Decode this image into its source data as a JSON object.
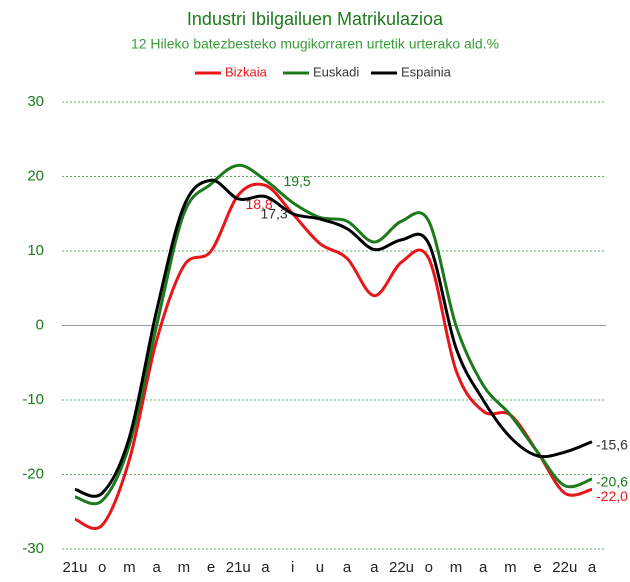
{
  "chart_data": {
    "type": "line",
    "title": "Industri Ibilgailuen Matrikulazioa",
    "subtitle": "12  Hileko batezbesteko mugikorraren urtetik urterako ald.%",
    "categories": [
      "21u",
      "o",
      "m",
      "a",
      "m",
      "e",
      "21u",
      "a",
      "i",
      "u",
      "a",
      "a",
      "22u",
      "o",
      "m",
      "a",
      "m",
      "e",
      "22u",
      "a"
    ],
    "series": [
      {
        "name": "Bizkaia",
        "color": "#e8161b",
        "values": [
          -26,
          -26.8,
          -18,
          -2,
          8,
          10,
          17.5,
          18.8,
          15,
          11,
          9,
          4,
          8.5,
          9,
          -6,
          -11.5,
          -12,
          -17,
          -22.5,
          -22.0
        ],
        "value_labels": [
          null,
          null,
          null,
          null,
          null,
          null,
          null,
          "18,8",
          null,
          null,
          null,
          null,
          null,
          null,
          null,
          null,
          null,
          null,
          null,
          "-22,0"
        ]
      },
      {
        "name": "Euskadi",
        "color": "#1c7a1c",
        "values": [
          -23,
          -23.5,
          -16,
          0,
          15,
          19,
          21.5,
          19.5,
          16.5,
          14.5,
          14,
          11.2,
          14,
          14,
          0,
          -8,
          -12,
          -17,
          -21.5,
          -20.6
        ],
        "value_labels": [
          null,
          null,
          null,
          null,
          null,
          null,
          null,
          "19,5",
          null,
          null,
          null,
          null,
          null,
          null,
          null,
          null,
          null,
          null,
          null,
          "-20,6"
        ]
      },
      {
        "name": "Espainia",
        "color": "#000000",
        "values": [
          -22,
          -22.5,
          -15,
          2,
          16,
          19.5,
          17,
          17.3,
          15,
          14.3,
          13,
          10.2,
          11.5,
          11,
          -3,
          -10,
          -15,
          -17.5,
          -17,
          -15.6
        ],
        "value_labels": [
          null,
          null,
          null,
          null,
          null,
          null,
          null,
          "17,3",
          null,
          null,
          null,
          null,
          null,
          null,
          null,
          null,
          null,
          null,
          null,
          "-15,6"
        ]
      }
    ],
    "ylim": [
      -30,
      30
    ],
    "yticks": [
      -30,
      -20,
      -10,
      0,
      10,
      20,
      30
    ],
    "grid": true,
    "legend": "top"
  }
}
